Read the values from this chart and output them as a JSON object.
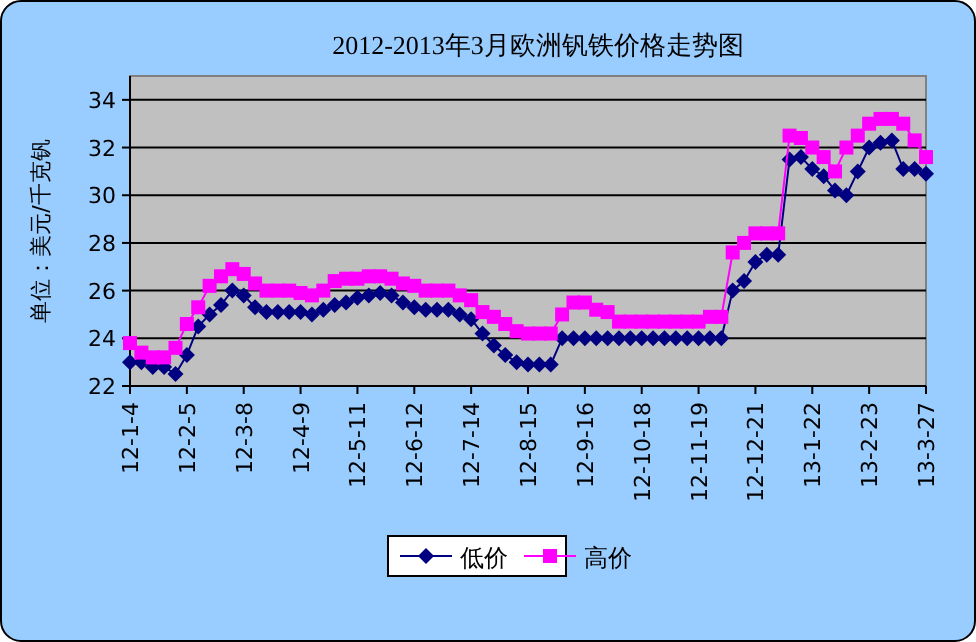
{
  "chart_data": {
    "type": "line",
    "title": "2012-2013年3月欧洲钒铁价格走势图",
    "ylabel": "单位：美元/千克钒",
    "categories": [
      "12-1-4",
      null,
      null,
      null,
      null,
      "12-2-5",
      null,
      null,
      null,
      null,
      "12-3-8",
      null,
      null,
      null,
      null,
      "12-4-9",
      null,
      null,
      null,
      null,
      "12-5-11",
      null,
      null,
      null,
      null,
      "12-6-12",
      null,
      null,
      null,
      null,
      "12-7-14",
      null,
      null,
      null,
      null,
      "12-8-15",
      null,
      null,
      null,
      null,
      "12-9-16",
      null,
      null,
      null,
      null,
      "12-10-18",
      null,
      null,
      null,
      null,
      "12-11-19",
      null,
      null,
      null,
      null,
      "12-12-21",
      null,
      null,
      null,
      null,
      "13-1-22",
      null,
      null,
      null,
      null,
      "13-2-23",
      null,
      null,
      null,
      null,
      "13-3-27"
    ],
    "series": [
      {
        "name": "低价",
        "color": "#000080",
        "marker": "diamond",
        "values": [
          23.0,
          23.0,
          22.8,
          22.8,
          22.5,
          23.3,
          24.5,
          25.0,
          25.4,
          26.0,
          25.8,
          25.3,
          25.1,
          25.1,
          25.1,
          25.1,
          25.0,
          25.2,
          25.4,
          25.5,
          25.7,
          25.8,
          25.9,
          25.8,
          25.5,
          25.3,
          25.2,
          25.2,
          25.2,
          25.0,
          24.8,
          24.2,
          23.7,
          23.3,
          23.0,
          22.9,
          22.9,
          22.9,
          24.0,
          24.0,
          24.0,
          24.0,
          24.0,
          24.0,
          24.0,
          24.0,
          24.0,
          24.0,
          24.0,
          24.0,
          24.0,
          24.0,
          24.0,
          26.0,
          26.4,
          27.2,
          27.5,
          27.5,
          31.5,
          31.6,
          31.1,
          30.8,
          30.2,
          30.0,
          31.0,
          32.0,
          32.2,
          32.3,
          31.1,
          31.1,
          30.9
        ]
      },
      {
        "name": "高价",
        "color": "#ff00ff",
        "marker": "square",
        "values": [
          23.8,
          23.4,
          23.2,
          23.2,
          23.6,
          24.6,
          25.3,
          26.2,
          26.6,
          26.9,
          26.7,
          26.3,
          26.0,
          26.0,
          26.0,
          25.9,
          25.8,
          26.0,
          26.4,
          26.5,
          26.5,
          26.6,
          26.6,
          26.5,
          26.3,
          26.2,
          26.0,
          26.0,
          26.0,
          25.8,
          25.6,
          25.1,
          24.9,
          24.6,
          24.3,
          24.2,
          24.2,
          24.2,
          25.0,
          25.5,
          25.5,
          25.2,
          25.1,
          24.7,
          24.7,
          24.7,
          24.7,
          24.7,
          24.7,
          24.7,
          24.7,
          24.9,
          24.9,
          27.6,
          28.0,
          28.4,
          28.4,
          28.4,
          32.5,
          32.4,
          32.0,
          31.6,
          31.0,
          32.0,
          32.5,
          33.0,
          33.2,
          33.2,
          33.0,
          32.3,
          31.6
        ]
      }
    ],
    "ylim": [
      22,
      35
    ],
    "yticks": [
      22,
      24,
      26,
      28,
      30,
      32,
      34
    ],
    "grid": "y",
    "legend": "bottom"
  }
}
